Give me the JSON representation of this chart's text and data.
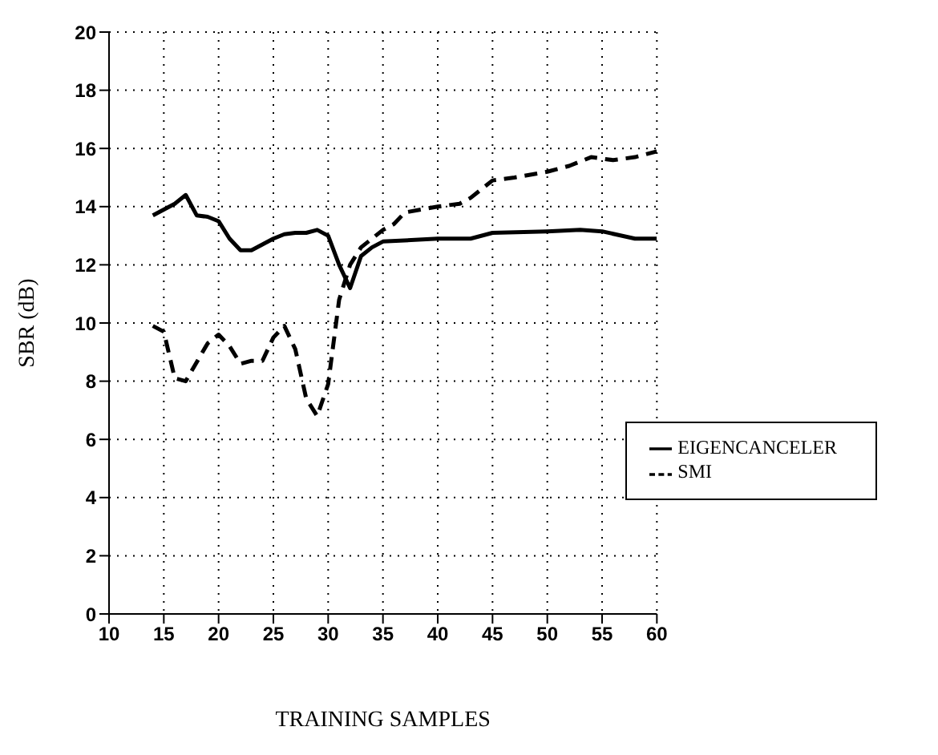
{
  "chart_data": {
    "type": "line",
    "xlabel": "TRAINING SAMPLES",
    "ylabel": "SBR (dB)",
    "xlim": [
      10,
      60
    ],
    "xticks": [
      10,
      15,
      20,
      25,
      30,
      35,
      40,
      45,
      50,
      55,
      60
    ],
    "ylim": [
      0,
      20
    ],
    "yticks": [
      0,
      2,
      4,
      6,
      8,
      10,
      12,
      14,
      16,
      18,
      20
    ],
    "grid": true,
    "legend": "right",
    "marker": "none",
    "series": [
      {
        "name": "EIGENCANCELER",
        "color": "#000000",
        "line_style": "solid",
        "x": [
          14,
          15,
          16,
          17,
          18,
          19,
          20,
          21,
          22,
          23,
          24,
          25,
          26,
          27,
          28,
          29,
          30,
          31,
          32,
          33,
          34,
          35,
          40,
          43,
          45,
          50,
          53,
          55,
          58,
          60
        ],
        "values": [
          13.7,
          13.9,
          14.1,
          14.4,
          13.7,
          13.65,
          13.5,
          12.9,
          12.5,
          12.5,
          12.7,
          12.9,
          13.05,
          13.1,
          13.1,
          13.2,
          13.0,
          12.0,
          11.2,
          12.3,
          12.6,
          12.8,
          12.9,
          12.9,
          13.1,
          13.15,
          13.2,
          13.15,
          12.9,
          12.9
        ]
      },
      {
        "name": "SMI",
        "color": "#000000",
        "line_style": "dashed",
        "x": [
          14,
          15,
          16,
          17,
          19,
          20,
          21,
          22,
          23,
          24,
          25,
          26,
          27,
          28,
          29,
          30,
          31,
          32,
          33,
          35,
          36,
          37,
          40,
          42,
          43,
          45,
          47,
          50,
          52,
          54,
          56,
          58,
          60
        ],
        "values": [
          9.9,
          9.7,
          8.1,
          8.0,
          9.3,
          9.6,
          9.2,
          8.6,
          8.7,
          8.7,
          9.5,
          9.9,
          9.1,
          7.4,
          6.8,
          7.9,
          10.8,
          12.0,
          12.6,
          13.2,
          13.4,
          13.8,
          14.0,
          14.1,
          14.3,
          14.9,
          15.0,
          15.2,
          15.4,
          15.7,
          15.6,
          15.7,
          15.9
        ]
      }
    ]
  }
}
